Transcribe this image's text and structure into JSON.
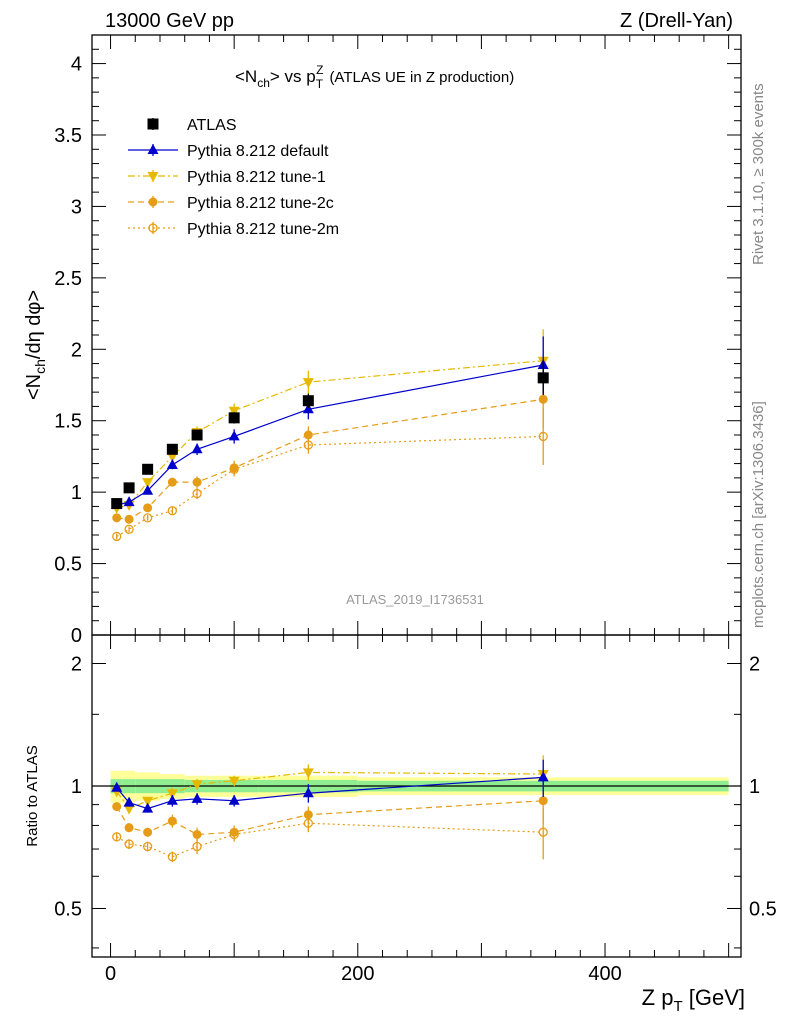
{
  "header": {
    "left": "13000 GeV pp",
    "right": "Z (Drell-Yan)"
  },
  "side_labels": {
    "rivet": "Rivet 3.1.10, ≥ 300k events",
    "mcplots": "mcplots.cern.ch [arXiv:1306.3436]"
  },
  "analysis_ref": "ATLAS_2019_I1736531",
  "title": {
    "main": "<N",
    "main_sub": "ch",
    "vs": "> vs p",
    "vs_sub": "T",
    "vs_sup": "Z",
    "detail": "(ATLAS UE in Z production)"
  },
  "ylabel_main": "<N_ch/dη dφ>",
  "ylabel_main_parts": {
    "pre": "<N",
    "sub": "ch",
    "post": "/dη dφ>"
  },
  "ylabel_ratio": "Ratio to ATLAS",
  "xlabel": {
    "pre": "Z p",
    "sub": "T",
    "post": " [GeV]"
  },
  "colors": {
    "atlas": "#000000",
    "default": "#0000cc",
    "tune1": "#e6b800",
    "tune2c": "#e69c17",
    "tune2m": "#e69c17",
    "band_inner": "#90ee90",
    "band_outer": "#ffff99"
  },
  "chart_data": [
    {
      "type": "scatter",
      "panel": "main",
      "xlim": [
        -15,
        510
      ],
      "ylim": [
        0,
        4.2
      ],
      "yticks": [
        0,
        0.5,
        1,
        1.5,
        2,
        2.5,
        3,
        3.5,
        4
      ],
      "ytick_labels": [
        "0",
        "0.5",
        "1",
        "1.5",
        "2",
        "2.5",
        "3",
        "3.5",
        "4"
      ],
      "x": [
        5,
        15,
        30,
        50,
        70,
        100,
        160,
        350
      ],
      "series": [
        {
          "name": "ATLAS",
          "key": "atlas",
          "marker": "square",
          "line": "none",
          "values": [
            0.92,
            1.03,
            1.16,
            1.3,
            1.4,
            1.52,
            1.64,
            1.8
          ],
          "err": [
            0.02,
            0.02,
            0.02,
            0.03,
            0.03,
            0.04,
            0.05,
            0.12
          ]
        },
        {
          "name": "Pythia 8.212 default",
          "key": "default",
          "marker": "triangle-up",
          "line": "solid",
          "values": [
            0.91,
            0.93,
            1.01,
            1.19,
            1.3,
            1.39,
            1.58,
            1.89
          ],
          "err": [
            0.02,
            0.02,
            0.02,
            0.03,
            0.04,
            0.05,
            0.07,
            0.2
          ]
        },
        {
          "name": "Pythia 8.212 tune-1",
          "key": "tune1",
          "marker": "triangle-down",
          "line": "dashdot",
          "values": [
            0.89,
            0.91,
            1.07,
            1.25,
            1.42,
            1.57,
            1.77,
            1.92
          ],
          "err": [
            0.02,
            0.02,
            0.02,
            0.03,
            0.04,
            0.05,
            0.08,
            0.22
          ]
        },
        {
          "name": "Pythia 8.212 tune-2c",
          "key": "tune2c",
          "marker": "circle",
          "line": "dashed",
          "values": [
            0.82,
            0.81,
            0.89,
            1.07,
            1.07,
            1.17,
            1.4,
            1.65
          ],
          "err": [
            0.02,
            0.02,
            0.02,
            0.03,
            0.04,
            0.05,
            0.06,
            0.2
          ]
        },
        {
          "name": "Pythia 8.212 tune-2m",
          "key": "tune2m",
          "marker": "circle-open",
          "line": "dotted",
          "values": [
            0.69,
            0.74,
            0.82,
            0.87,
            0.99,
            1.16,
            1.33,
            1.39
          ],
          "err": [
            0.02,
            0.02,
            0.02,
            0.03,
            0.04,
            0.05,
            0.06,
            0.2
          ]
        }
      ],
      "legend_position": "top-left"
    },
    {
      "type": "scatter",
      "panel": "ratio",
      "ylabel": "Ratio to ATLAS",
      "xlim": [
        -15,
        510
      ],
      "ylim": [
        0.38,
        2.35
      ],
      "yscale": "log",
      "yticks": [
        0.5,
        1,
        2
      ],
      "ytick_labels": [
        "0.5",
        "1",
        "2"
      ],
      "xticks": [
        0,
        200,
        400
      ],
      "xtick_labels": [
        "0",
        "200",
        "400"
      ],
      "x": [
        5,
        15,
        30,
        50,
        70,
        100,
        160,
        350
      ],
      "band_inner": [
        0.04,
        0.04,
        0.04,
        0.04,
        0.035,
        0.035,
        0.035,
        0.03
      ],
      "band_outer": [
        0.09,
        0.09,
        0.08,
        0.07,
        0.06,
        0.06,
        0.06,
        0.05
      ],
      "series": [
        {
          "name": "Pythia 8.212 default",
          "key": "default",
          "values": [
            0.99,
            0.91,
            0.88,
            0.92,
            0.93,
            0.92,
            0.96,
            1.05
          ],
          "err": [
            0.02,
            0.02,
            0.02,
            0.03,
            0.03,
            0.03,
            0.05,
            0.11
          ]
        },
        {
          "name": "Pythia 8.212 tune-1",
          "key": "tune1",
          "values": [
            0.97,
            0.88,
            0.92,
            0.96,
            1.01,
            1.03,
            1.08,
            1.07
          ],
          "err": [
            0.02,
            0.02,
            0.02,
            0.03,
            0.03,
            0.03,
            0.05,
            0.12
          ]
        },
        {
          "name": "Pythia 8.212 tune-2c",
          "key": "tune2c",
          "values": [
            0.89,
            0.79,
            0.77,
            0.82,
            0.76,
            0.77,
            0.85,
            0.92
          ],
          "err": [
            0.02,
            0.02,
            0.02,
            0.03,
            0.03,
            0.03,
            0.04,
            0.11
          ]
        },
        {
          "name": "Pythia 8.212 tune-2m",
          "key": "tune2m",
          "values": [
            0.75,
            0.72,
            0.71,
            0.67,
            0.71,
            0.76,
            0.81,
            0.77
          ],
          "err": [
            0.02,
            0.02,
            0.02,
            0.02,
            0.03,
            0.03,
            0.04,
            0.11
          ]
        }
      ]
    }
  ]
}
